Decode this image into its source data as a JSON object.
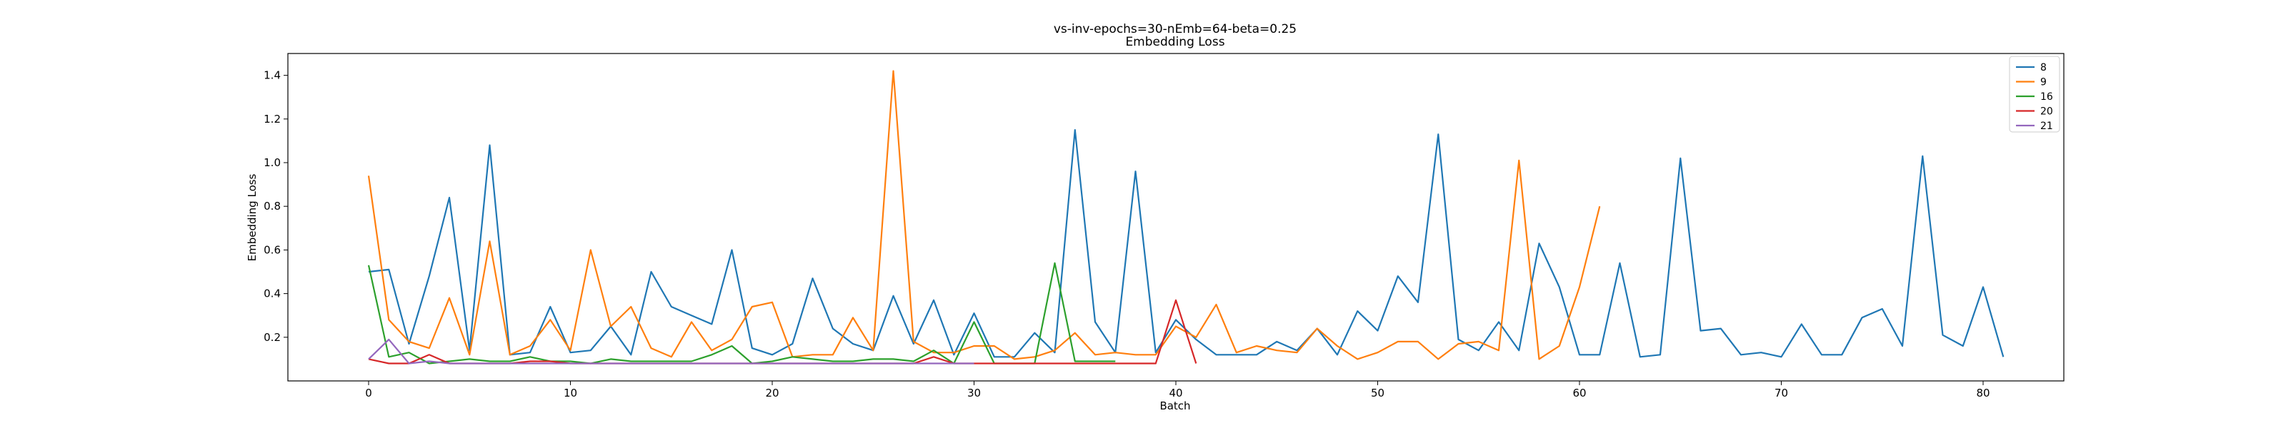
{
  "chart_data": {
    "type": "line",
    "title": "vs-inv-epochs=30-nEmb=64-beta=0.25",
    "subtitle": "Embedding Loss",
    "xlabel": "Batch",
    "ylabel": "Embedding Loss",
    "xlim": [
      -4,
      84
    ],
    "ylim": [
      0.0,
      1.5
    ],
    "xticks": [
      0,
      10,
      20,
      30,
      40,
      50,
      60,
      70,
      80
    ],
    "yticks": [
      0.2,
      0.4,
      0.6,
      0.8,
      1.0,
      1.2,
      1.4
    ],
    "ytick_labels": [
      "0.2",
      "0.4",
      "0.6",
      "0.8",
      "1.0",
      "1.2",
      "1.4"
    ],
    "legend_position": "top-right",
    "grid": false,
    "series": [
      {
        "name": "8",
        "color": "#1f77b4",
        "values": [
          0.5,
          0.51,
          0.17,
          0.48,
          0.84,
          0.14,
          1.08,
          0.12,
          0.13,
          0.34,
          0.13,
          0.14,
          0.25,
          0.12,
          0.5,
          0.34,
          0.3,
          0.26,
          0.6,
          0.15,
          0.12,
          0.17,
          0.47,
          0.24,
          0.17,
          0.14,
          0.39,
          0.17,
          0.37,
          0.12,
          0.31,
          0.11,
          0.11,
          0.22,
          0.13,
          1.15,
          0.27,
          0.13,
          0.96,
          0.13,
          0.28,
          0.19,
          0.12,
          0.12,
          0.12,
          0.18,
          0.14,
          0.24,
          0.12,
          0.32,
          0.23,
          0.48,
          0.36,
          1.13,
          0.19,
          0.14,
          0.27,
          0.14,
          0.63,
          0.43,
          0.12,
          0.12,
          0.54,
          0.11,
          0.12,
          1.02,
          0.23,
          0.24,
          0.12,
          0.13,
          0.11,
          0.26,
          0.12,
          0.12,
          0.29,
          0.33,
          0.16,
          1.03,
          0.21,
          0.16,
          0.43,
          0.11
        ]
      },
      {
        "name": "9",
        "color": "#ff7f0e",
        "values": [
          0.94,
          0.28,
          0.18,
          0.15,
          0.38,
          0.12,
          0.64,
          0.12,
          0.16,
          0.28,
          0.14,
          0.6,
          0.25,
          0.34,
          0.15,
          0.11,
          0.27,
          0.14,
          0.19,
          0.34,
          0.36,
          0.11,
          0.12,
          0.12,
          0.29,
          0.14,
          1.42,
          0.18,
          0.13,
          0.13,
          0.16,
          0.16,
          0.1,
          0.11,
          0.14,
          0.22,
          0.12,
          0.13,
          0.12,
          0.12,
          0.25,
          0.2,
          0.35,
          0.13,
          0.16,
          0.14,
          0.13,
          0.24,
          0.16,
          0.1,
          0.13,
          0.18,
          0.18,
          0.1,
          0.17,
          0.18,
          0.14,
          1.01,
          0.1,
          0.16,
          0.43,
          0.8
        ]
      },
      {
        "name": "16",
        "color": "#2ca02c",
        "values": [
          0.53,
          0.11,
          0.13,
          0.08,
          0.09,
          0.1,
          0.09,
          0.09,
          0.11,
          0.09,
          0.09,
          0.08,
          0.1,
          0.09,
          0.09,
          0.09,
          0.09,
          0.12,
          0.16,
          0.08,
          0.09,
          0.11,
          0.1,
          0.09,
          0.09,
          0.1,
          0.1,
          0.09,
          0.14,
          0.08,
          0.27,
          0.08,
          0.08,
          0.08,
          0.54,
          0.09,
          0.09,
          0.09
        ]
      },
      {
        "name": "20",
        "color": "#d62728",
        "values": [
          0.1,
          0.08,
          0.08,
          0.12,
          0.08,
          0.08,
          0.08,
          0.08,
          0.09,
          0.09,
          0.08,
          0.08,
          0.08,
          0.08,
          0.08,
          0.08,
          0.08,
          0.08,
          0.08,
          0.08,
          0.08,
          0.08,
          0.08,
          0.08,
          0.08,
          0.08,
          0.08,
          0.08,
          0.11,
          0.08,
          0.08,
          0.08,
          0.08,
          0.08,
          0.08,
          0.08,
          0.08,
          0.08,
          0.08,
          0.08,
          0.37,
          0.08
        ]
      },
      {
        "name": "21",
        "color": "#9467bd",
        "values": [
          0.1,
          0.19,
          0.08,
          0.09,
          0.08,
          0.08,
          0.08,
          0.08,
          0.08,
          0.08,
          0.08,
          0.08,
          0.08,
          0.08,
          0.08,
          0.08,
          0.08,
          0.08,
          0.08,
          0.08,
          0.08,
          0.08,
          0.08,
          0.08,
          0.08,
          0.08,
          0.08,
          0.08,
          0.08,
          0.08,
          0.08
        ]
      }
    ]
  }
}
